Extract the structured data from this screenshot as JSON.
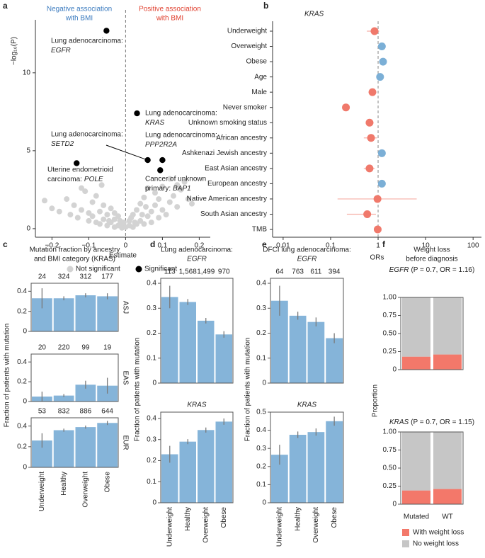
{
  "chart_data": [
    {
      "type": "scatter",
      "panel": "a",
      "xlabel": "Estimate",
      "ylabel": "−log₁₀(P)",
      "xlim": [
        -0.245,
        0.23
      ],
      "ylim": [
        -0.55,
        13.4
      ],
      "xticks": [
        {
          "value": -0.2,
          "label": "−0.2"
        },
        {
          "value": -0.1,
          "label": "−0.1"
        },
        0,
        0.1,
        0.2
      ],
      "yticks": [
        0,
        5,
        10
      ],
      "reference_line": 0,
      "direction_labels": [
        {
          "lines": [
            "Negative association",
            "with BMI"
          ],
          "color": "#3b7bbf"
        },
        {
          "lines": [
            "Positive association",
            "with BMI"
          ],
          "color": "#e0402f"
        }
      ],
      "series": [
        {
          "name": "Not significant",
          "color": "#d3d3d3",
          "x": [
            -0.22,
            -0.2,
            -0.18,
            -0.16,
            -0.15,
            -0.14,
            -0.13,
            -0.12,
            -0.11,
            -0.1,
            -0.1,
            -0.09,
            -0.09,
            -0.08,
            -0.08,
            -0.07,
            -0.07,
            -0.06,
            -0.06,
            -0.05,
            -0.05,
            -0.04,
            -0.04,
            -0.03,
            -0.03,
            -0.02,
            -0.02,
            -0.01,
            -0.01,
            0,
            0.01,
            0.01,
            0.02,
            0.02,
            0.03,
            0.03,
            0.04,
            0.04,
            0.05,
            0.05,
            0.06,
            0.06,
            0.07,
            0.07,
            0.08,
            0.08,
            0.09,
            0.09,
            0.1,
            0.1,
            0.11,
            0.12,
            0.13,
            0.14,
            0.15,
            0.16,
            0.17,
            0.18,
            -0.03,
            -0.005,
            0.015,
            0.045,
            -0.045,
            0.025,
            -0.015,
            0.055,
            -0.065,
            -0.12,
            0.12,
            0.14
          ],
          "y": [
            1.8,
            1.3,
            1.1,
            1.9,
            0.9,
            1.5,
            0.7,
            1.2,
            2.4,
            1.0,
            0.5,
            1.7,
            0.8,
            0.4,
            2.1,
            1.1,
            0.3,
            0.6,
            1.5,
            0.2,
            0.9,
            0.4,
            1.3,
            0.1,
            0.6,
            0.2,
            0.8,
            0.05,
            0.3,
            0.1,
            0.2,
            0.5,
            0.1,
            0.9,
            0.3,
            1.2,
            0.5,
            1.6,
            0.3,
            2.0,
            0.8,
            2.6,
            1.1,
            0.4,
            1.5,
            2.3,
            0.7,
            1.9,
            1.2,
            2.7,
            0.9,
            1.7,
            2.1,
            1.4,
            2.5,
            3.0,
            1.9,
            1.6,
            1.0,
            0.4,
            0.7,
            0.9,
            0.5,
            0.4,
            0.5,
            1.4,
            2.8,
            2.6,
            3.2,
            2.8
          ]
        },
        {
          "name": "Significant",
          "color": "#000000",
          "x": [
            -0.052,
            0.031,
            0.06,
            0.1,
            0.094,
            -0.133
          ],
          "y": [
            12.7,
            7.4,
            4.4,
            4.4,
            3.75,
            4.2
          ],
          "labels": [
            {
              "line1": "Lung adenocarcinoma:",
              "gene": "EGFR"
            },
            {
              "line1": "Lung adenocarcinoma:",
              "gene": "KRAS"
            },
            {
              "line1": "Lung adenocarcinoma:",
              "gene": "SETD2"
            },
            {
              "line1": "Lung adenocarcinoma:",
              "gene": "PPP2R2A"
            },
            {
              "line1": "Cancer of unknown",
              "prefix": "primary:",
              "gene": "BAP1"
            },
            {
              "line1": "Uterine endometrioid",
              "prefix": "carcinoma:",
              "gene": "POLE"
            }
          ]
        }
      ]
    },
    {
      "type": "forest",
      "panel": "b",
      "title": "KRAS",
      "xlabel": "ORs",
      "log_x": true,
      "xlim": [
        0.006,
        150
      ],
      "xticks": [
        0.01,
        0.1,
        1,
        10,
        100
      ],
      "reference_line": 1,
      "categories": [
        "Underweight",
        "Overweight",
        "Obese",
        "Age",
        "Male",
        "Never smoker",
        "Unknown smoking status",
        "African ancestry",
        "Ashkenazi Jewish ancestry",
        "East Asian ancestry",
        "European ancestry",
        "Native American ancestry",
        "South Asian ancestry",
        "TMB"
      ],
      "values": [
        0.84,
        1.2,
        1.27,
        1.1,
        0.76,
        0.21,
        0.66,
        0.71,
        1.2,
        0.66,
        1.2,
        0.97,
        0.59,
        0.98
      ],
      "lower": [
        0.58,
        1.08,
        1.14,
        1.0,
        0.69,
        0.18,
        0.55,
        0.5,
        1.05,
        0.5,
        1.05,
        0.14,
        0.22,
        0.96
      ],
      "upper": [
        1.05,
        1.33,
        1.42,
        1.2,
        0.84,
        0.25,
        0.8,
        0.95,
        1.38,
        0.85,
        1.36,
        6.5,
        0.9,
        1.0
      ],
      "colors": [
        "#f0796b",
        "#7bafd6",
        "#7bafd6",
        "#7bafd6",
        "#f0796b",
        "#f0796b",
        "#f0796b",
        "#f0796b",
        "#7bafd6",
        "#f0796b",
        "#7bafd6",
        "#f0796b",
        "#f0796b",
        "#f0796b"
      ]
    },
    {
      "type": "bar",
      "panel": "c",
      "title": [
        "Mutation fraction by ancestry",
        "and BMI category (KRAS)"
      ],
      "facet": "ASJ",
      "n": [
        24,
        324,
        312,
        177
      ],
      "values": [
        0.33,
        0.33,
        0.36,
        0.35
      ],
      "errors": [
        0.1,
        0.02,
        0.02,
        0.03
      ],
      "color": "#85b4d9",
      "ylim": [
        0,
        0.48
      ],
      "yticks": [
        0,
        0.2,
        0.4
      ]
    },
    {
      "type": "bar",
      "facet": "EAS",
      "ylabel": "Fraction of patients with mutation",
      "n": [
        20,
        220,
        99,
        19
      ],
      "values": [
        0.05,
        0.06,
        0.17,
        0.16
      ],
      "errors": [
        0.05,
        0.015,
        0.04,
        0.08
      ],
      "color": "#85b4d9",
      "ylim": [
        0,
        0.48
      ],
      "yticks": [
        0,
        0.2,
        0.4
      ]
    },
    {
      "type": "bar",
      "facet": "EUR",
      "categories": [
        "Underweight",
        "Healthy",
        "Overweight",
        "Obese"
      ],
      "n": [
        53,
        832,
        886,
        644
      ],
      "values": [
        0.26,
        0.36,
        0.39,
        0.43
      ],
      "errors": [
        0.07,
        0.015,
        0.015,
        0.02
      ],
      "color": "#85b4d9",
      "ylim": [
        0,
        0.48
      ],
      "yticks": [
        0,
        0.2,
        0.4
      ]
    },
    {
      "type": "bar",
      "panel": "d",
      "title": [
        "Lung adenocarcinoma:",
        "EGFR"
      ],
      "ylabel": "Fraction of patients with mutation",
      "n": [
        113,
        {
          "value": 1568,
          "label": "1,568"
        },
        {
          "value": 1499,
          "label": "1,499"
        },
        970
      ],
      "values": [
        0.345,
        0.325,
        0.25,
        0.195
      ],
      "errors": [
        0.045,
        0.012,
        0.011,
        0.013
      ],
      "color": "#85b4d9",
      "ylim": [
        0,
        0.42
      ],
      "yticks": [
        0,
        0.1,
        0.2,
        0.3,
        0.4
      ]
    },
    {
      "type": "bar",
      "title": [
        "KRAS"
      ],
      "categories": [
        "Underweight",
        "Healthy",
        "Overweight",
        "Obese"
      ],
      "values": [
        0.23,
        0.29,
        0.345,
        0.385
      ],
      "errors": [
        0.04,
        0.012,
        0.012,
        0.015
      ],
      "color": "#85b4d9",
      "ylim": [
        0,
        0.43
      ],
      "yticks": [
        0,
        0.1,
        0.2,
        0.3,
        0.4
      ]
    },
    {
      "type": "bar",
      "panel": "e",
      "title": [
        "DFCI lung adenocarcinoma:",
        "EGFR"
      ],
      "ylabel": "Fraction of patients with mutation",
      "n": [
        64,
        763,
        611,
        394
      ],
      "values": [
        0.33,
        0.27,
        0.245,
        0.18
      ],
      "errors": [
        0.06,
        0.016,
        0.018,
        0.02
      ],
      "color": "#85b4d9",
      "ylim": [
        0,
        0.42
      ],
      "yticks": [
        0,
        0.1,
        0.2,
        0.3,
        0.4
      ]
    },
    {
      "type": "bar",
      "title": [
        "KRAS"
      ],
      "categories": [
        "Underweight",
        "Healthy",
        "Overweight",
        "Obese"
      ],
      "values": [
        0.265,
        0.375,
        0.39,
        0.45
      ],
      "errors": [
        0.055,
        0.018,
        0.02,
        0.025
      ],
      "color": "#85b4d9",
      "ylim": [
        0,
        0.5
      ],
      "yticks": [
        0,
        0.1,
        0.2,
        0.3,
        0.4,
        0.5
      ]
    },
    {
      "type": "stacked_bar",
      "panel": "f",
      "title": [
        "Weight loss",
        "before diagnosis"
      ],
      "gene": "EGFR",
      "subtitle": "(P = 0.7, OR = 1.16)",
      "ylim": [
        0,
        1
      ],
      "yticks": [
        0,
        {
          "value": 0.25,
          "label": "0.25"
        },
        {
          "value": 0.5,
          "label": "0.50"
        },
        {
          "value": 0.75,
          "label": "0.75"
        },
        {
          "value": 1,
          "label": "1.00"
        }
      ],
      "series": [
        {
          "color": "#f3786a",
          "values": [
            0.18,
            0.21
          ]
        },
        {
          "color": "#c6c6c6",
          "values": [
            0.82,
            0.79
          ]
        }
      ]
    },
    {
      "type": "stacked_bar",
      "gene": "KRAS",
      "subtitle": "(P = 0.7, OR = 1.15)",
      "ylabel": "Proportion",
      "categories": [
        "Mutated",
        "WT"
      ],
      "ylim": [
        0,
        1
      ],
      "yticks": [
        0,
        {
          "value": 0.25,
          "label": "0.25"
        },
        {
          "value": 0.5,
          "label": "0.50"
        },
        {
          "value": 0.75,
          "label": "0.75"
        },
        {
          "value": 1,
          "label": "1.00"
        }
      ],
      "series": [
        {
          "name": "With weight loss",
          "color": "#f3786a",
          "values": [
            0.19,
            0.21
          ]
        },
        {
          "name": "No weight loss",
          "color": "#c6c6c6",
          "values": [
            0.81,
            0.79
          ]
        }
      ]
    }
  ]
}
